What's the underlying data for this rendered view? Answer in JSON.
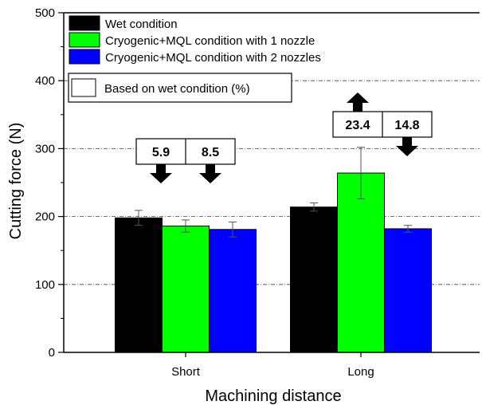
{
  "chart_data": {
    "type": "bar",
    "title": "",
    "xlabel": "Machining distance",
    "ylabel": "Cutting force (N)",
    "ylim": [
      0,
      500
    ],
    "yticks": [
      0,
      100,
      200,
      300,
      400,
      500
    ],
    "grid": true,
    "legend_position": "top-left",
    "categories": [
      "Short",
      "Long"
    ],
    "series": [
      {
        "name": "Wet condition",
        "color": "#000000",
        "values": [
          198,
          214
        ],
        "errors": [
          11,
          6
        ]
      },
      {
        "name": "Cryogenic+MQL condition with 1 nozzle",
        "color": "#00ff00",
        "values": [
          186,
          264
        ],
        "errors": [
          9,
          38
        ]
      },
      {
        "name": "Cryogenic+MQL condition with 2 nozzles",
        "color": "#0000ff",
        "values": [
          181,
          182
        ],
        "errors": [
          11,
          5
        ]
      }
    ],
    "legend_note": "Based on wet condition (%)",
    "annotations": [
      {
        "category": "Short",
        "left_value": "5.9",
        "right_value": "8.5",
        "left_direction": "down",
        "right_direction": "down"
      },
      {
        "category": "Long",
        "left_value": "23.4",
        "right_value": "14.8",
        "left_direction": "up",
        "right_direction": "down"
      }
    ]
  }
}
